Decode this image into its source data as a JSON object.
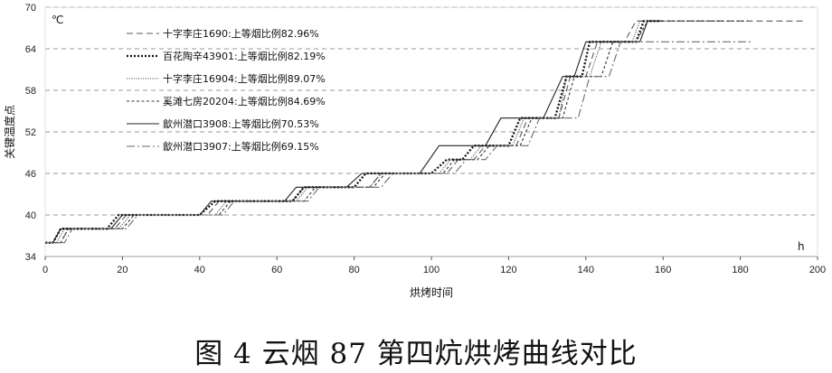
{
  "caption": "图 4  云烟 87 第四炕烘烤曲线对比",
  "chart_data": {
    "type": "line",
    "title": "",
    "xlabel": "烘烤时间",
    "ylabel": "关键温度点",
    "x_unit": "h",
    "y_unit": "℃",
    "xlim": [
      0,
      200
    ],
    "ylim": [
      34,
      70
    ],
    "xticks": [
      0,
      20,
      40,
      60,
      80,
      100,
      120,
      140,
      160,
      180,
      200
    ],
    "yticks": [
      34,
      40,
      46,
      52,
      58,
      64,
      70
    ],
    "grid": "horizontal dashed",
    "legend_position": "top-left",
    "series": [
      {
        "name": "十字李庄1690:上等烟比例82.96%",
        "style": "dashed",
        "points": [
          [
            0,
            36
          ],
          [
            4,
            36
          ],
          [
            6,
            38
          ],
          [
            18,
            38
          ],
          [
            21,
            40
          ],
          [
            42,
            40
          ],
          [
            45,
            42
          ],
          [
            64,
            42
          ],
          [
            67,
            44
          ],
          [
            84,
            44
          ],
          [
            87,
            46
          ],
          [
            104,
            46
          ],
          [
            107,
            48
          ],
          [
            111,
            48
          ],
          [
            114,
            50
          ],
          [
            122,
            50
          ],
          [
            125,
            54
          ],
          [
            133,
            54
          ],
          [
            136,
            60
          ],
          [
            140,
            60
          ],
          [
            143,
            65
          ],
          [
            150,
            65
          ],
          [
            153,
            68
          ],
          [
            197,
            68
          ]
        ]
      },
      {
        "name": "百花陶辛43901:上等烟比例82.19%",
        "style": "dotted-heavy",
        "points": [
          [
            0,
            36
          ],
          [
            2,
            36
          ],
          [
            4,
            38
          ],
          [
            16,
            38
          ],
          [
            19,
            40
          ],
          [
            40,
            40
          ],
          [
            44,
            42
          ],
          [
            64,
            42
          ],
          [
            67,
            44
          ],
          [
            80,
            44
          ],
          [
            83,
            46
          ],
          [
            100,
            46
          ],
          [
            104,
            48
          ],
          [
            108,
            48
          ],
          [
            111,
            50
          ],
          [
            120,
            50
          ],
          [
            123,
            54
          ],
          [
            132,
            54
          ],
          [
            135,
            60
          ],
          [
            139,
            60
          ],
          [
            141,
            65
          ],
          [
            153,
            65
          ],
          [
            155,
            68
          ],
          [
            159,
            68
          ]
        ]
      },
      {
        "name": "十字李庄16904:上等烟比例89.07%",
        "style": "dotted-fine",
        "points": [
          [
            0,
            36
          ],
          [
            3,
            36
          ],
          [
            5,
            38
          ],
          [
            19,
            38
          ],
          [
            22,
            40
          ],
          [
            44,
            40
          ],
          [
            47,
            42
          ],
          [
            65,
            42
          ],
          [
            68,
            44
          ],
          [
            84,
            44
          ],
          [
            87,
            46
          ],
          [
            102,
            46
          ],
          [
            105,
            48
          ],
          [
            110,
            48
          ],
          [
            113,
            50
          ],
          [
            121,
            50
          ],
          [
            124,
            54
          ],
          [
            133,
            54
          ],
          [
            135,
            60
          ],
          [
            141,
            60
          ],
          [
            144,
            65
          ],
          [
            152,
            65
          ],
          [
            154,
            68
          ],
          [
            175,
            68
          ]
        ]
      },
      {
        "name": "奚滩七房20204:上等烟比例84.69%",
        "style": "dashed-short",
        "points": [
          [
            0,
            36
          ],
          [
            4,
            36
          ],
          [
            6,
            38
          ],
          [
            20,
            38
          ],
          [
            23,
            40
          ],
          [
            45,
            40
          ],
          [
            48,
            42
          ],
          [
            67,
            42
          ],
          [
            70,
            44
          ],
          [
            85,
            44
          ],
          [
            88,
            46
          ],
          [
            103,
            46
          ],
          [
            106,
            48
          ],
          [
            112,
            48
          ],
          [
            115,
            50
          ],
          [
            123,
            50
          ],
          [
            126,
            54
          ],
          [
            134,
            54
          ],
          [
            137,
            60
          ],
          [
            144,
            60
          ],
          [
            147,
            65
          ],
          [
            153,
            65
          ],
          [
            156,
            68
          ],
          [
            182,
            68
          ]
        ]
      },
      {
        "name": "歙州潜口3908:上等烟比例70.53%",
        "style": "solid",
        "points": [
          [
            0,
            36
          ],
          [
            2,
            36
          ],
          [
            4,
            38
          ],
          [
            17,
            38
          ],
          [
            20,
            40
          ],
          [
            40,
            40
          ],
          [
            43,
            42
          ],
          [
            62,
            42
          ],
          [
            65,
            44
          ],
          [
            78,
            44
          ],
          [
            82,
            46
          ],
          [
            97,
            46
          ],
          [
            102,
            50
          ],
          [
            106,
            50
          ],
          [
            110,
            50
          ],
          [
            114,
            50
          ],
          [
            118,
            54
          ],
          [
            129,
            54
          ],
          [
            134,
            60
          ],
          [
            137,
            60
          ],
          [
            140,
            65
          ],
          [
            154,
            65
          ],
          [
            156,
            68
          ],
          [
            160,
            68
          ]
        ]
      },
      {
        "name": "歙州潜口3907:上等烟比例69.15%",
        "style": "dash-dot",
        "points": [
          [
            0,
            36
          ],
          [
            5,
            36
          ],
          [
            7,
            38
          ],
          [
            21,
            38
          ],
          [
            24,
            40
          ],
          [
            46,
            40
          ],
          [
            49,
            42
          ],
          [
            68,
            42
          ],
          [
            71,
            44
          ],
          [
            87,
            44
          ],
          [
            90,
            46
          ],
          [
            106,
            46
          ],
          [
            109,
            48
          ],
          [
            114,
            48
          ],
          [
            117,
            50
          ],
          [
            125,
            50
          ],
          [
            128,
            54
          ],
          [
            138,
            54
          ],
          [
            141,
            60
          ],
          [
            146,
            60
          ],
          [
            149,
            65
          ],
          [
            164,
            65
          ],
          [
            166,
            65
          ],
          [
            183,
            65
          ]
        ]
      }
    ]
  }
}
